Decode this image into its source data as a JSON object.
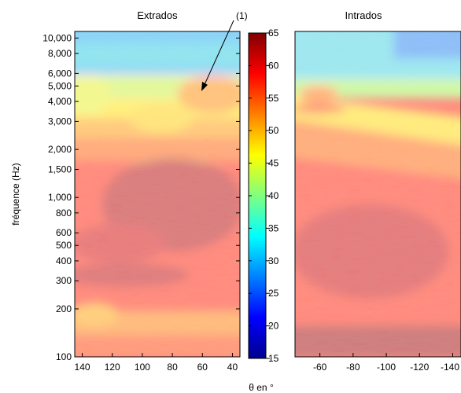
{
  "chart_data": [
    {
      "type": "heatmap",
      "title": "Extrados",
      "xlabel": "θ en °",
      "ylabel": "fréquence (Hz)",
      "x_ticks": [
        140,
        120,
        100,
        80,
        60,
        40
      ],
      "xlim": [
        145,
        35
      ],
      "y_ticks": [
        100,
        200,
        300,
        400,
        500,
        600,
        800,
        1000,
        1500,
        2000,
        3000,
        4000,
        5000,
        6000,
        8000,
        10000
      ],
      "y_tick_labels": [
        "100",
        "200",
        "300",
        "400",
        "500",
        "600",
        "800",
        "1,000",
        "1,500",
        "2,000",
        "3,000",
        "4,000",
        "5,000",
        "6,000",
        "8,000",
        "10,000"
      ],
      "ylim": [
        100,
        11000
      ],
      "yscale": "log",
      "annotation": {
        "text": "(1)",
        "x": 58,
        "y": 4500,
        "note_position": "top-right"
      },
      "typical_levels_db": [
        {
          "frequency": 10000,
          "level": 38
        },
        {
          "frequency": 6000,
          "level": 43
        },
        {
          "frequency": 4000,
          "level": 50
        },
        {
          "frequency": 2500,
          "level": 54
        },
        {
          "frequency": 1000,
          "level": 62
        },
        {
          "frequency": 500,
          "level": 61
        },
        {
          "frequency": 200,
          "level": 58
        },
        {
          "frequency": 100,
          "level": 56
        }
      ]
    },
    {
      "type": "heatmap",
      "title": "Intrados",
      "x_ticks": [
        -60,
        -80,
        -100,
        -120,
        -140
      ],
      "xlim": [
        -45,
        -145
      ],
      "yscale": "log",
      "ylim": [
        100,
        11000
      ],
      "typical_levels_db": [
        {
          "frequency": 10000,
          "level": 33
        },
        {
          "frequency": 6000,
          "level": 42
        },
        {
          "frequency": 3000,
          "level": 52
        },
        {
          "frequency": 1500,
          "level": 58
        },
        {
          "frequency": 500,
          "level": 61
        },
        {
          "frequency": 100,
          "level": 63
        }
      ]
    },
    {
      "type": "colorbar",
      "range": [
        15,
        65
      ],
      "ticks": [
        15,
        20,
        25,
        30,
        35,
        40,
        45,
        50,
        55,
        60,
        65
      ],
      "colormap": "jet"
    }
  ]
}
